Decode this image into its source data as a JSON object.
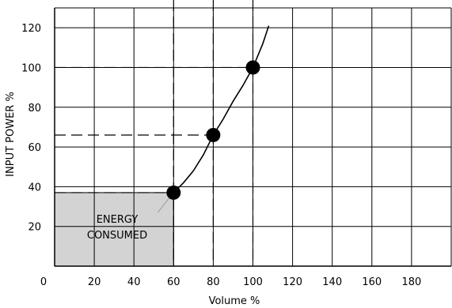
{
  "chart_data": {
    "type": "line",
    "title": "",
    "xlabel": "Volume %",
    "ylabel": "INPUT POWER %",
    "xlim": [
      0,
      200
    ],
    "ylim": [
      0,
      130
    ],
    "x_ticks": [
      0,
      20,
      40,
      60,
      80,
      100,
      120,
      140,
      160,
      180
    ],
    "y_ticks": [
      20,
      40,
      60,
      80,
      100,
      120
    ],
    "grid": true,
    "series": [
      {
        "x": [
          60,
          65,
          70,
          75,
          80,
          85,
          90,
          95,
          100,
          105,
          108
        ],
        "y": [
          37,
          42,
          48,
          56,
          66,
          74,
          83,
          91,
          100,
          112,
          121
        ]
      }
    ],
    "highlight_points": [
      {
        "x": 60,
        "y": 37
      },
      {
        "x": 80,
        "y": 66
      },
      {
        "x": 100,
        "y": 100
      }
    ],
    "shaded_region": {
      "x": [
        0,
        60
      ],
      "y": [
        0,
        37
      ]
    },
    "annotation": {
      "line1": "ENERGY",
      "line2": "CONSUMED",
      "x": 40,
      "y": 18
    }
  }
}
